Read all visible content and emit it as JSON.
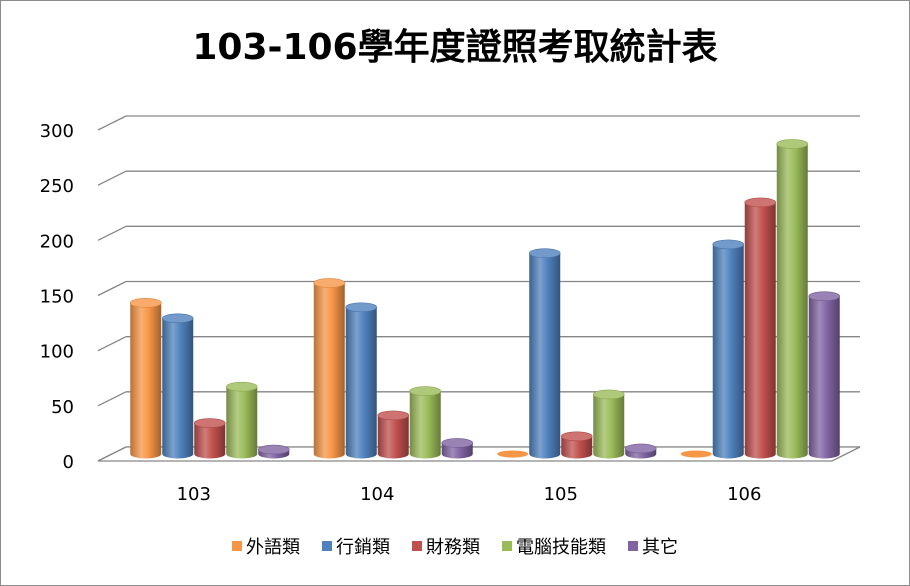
{
  "chart_data": {
    "type": "bar",
    "title": "103-106學年度證照考取統計表",
    "categories": [
      "103",
      "104",
      "105",
      "106"
    ],
    "series": [
      {
        "name": "外語類",
        "color": "#f79646",
        "values": [
          137,
          155,
          0,
          0
        ]
      },
      {
        "name": "行銷類",
        "color": "#4f81bd",
        "values": [
          123,
          133,
          182,
          190
        ]
      },
      {
        "name": "財務類",
        "color": "#c0504d",
        "values": [
          28,
          35,
          16,
          228
        ]
      },
      {
        "name": "電腦技能類",
        "color": "#9bbb59",
        "values": [
          61,
          57,
          54,
          281
        ]
      },
      {
        "name": "其它",
        "color": "#8064a2",
        "values": [
          4,
          10,
          5,
          143
        ]
      }
    ],
    "ylim": [
      0,
      300
    ],
    "yticks": [
      0,
      50,
      100,
      150,
      200,
      250,
      300
    ],
    "grid": true,
    "legend_position": "bottom",
    "style": "3d-cylinder"
  }
}
